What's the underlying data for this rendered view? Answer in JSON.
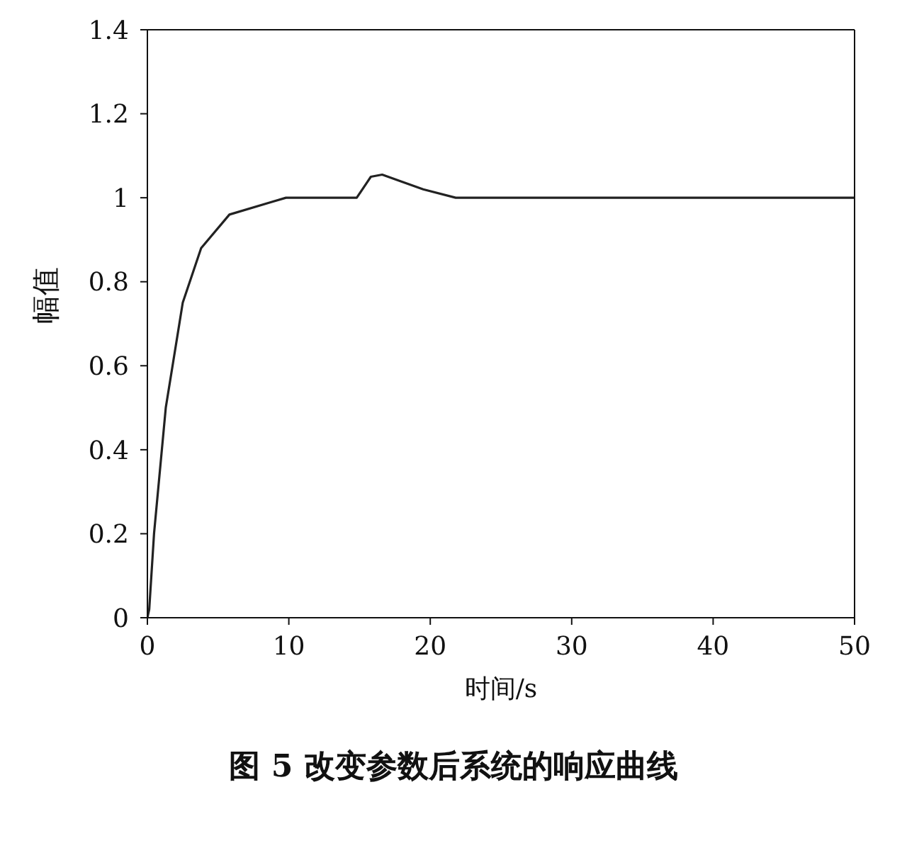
{
  "chart_data": {
    "type": "line",
    "title": "图 5  改变参数后系统的响应曲线",
    "xlabel": "时间/s",
    "ylabel": "幅值",
    "series": [
      {
        "color": "#222222",
        "x": [
          0,
          0.13,
          0.47,
          1.3,
          2.5,
          3.8,
          5.8,
          8.8,
          9.8,
          14.8,
          15.8,
          16.6,
          19.5,
          21.8,
          30,
          40,
          50
        ],
        "values": [
          0,
          0.02,
          0.2,
          0.5,
          0.75,
          0.88,
          0.96,
          0.99,
          1,
          1,
          1.05,
          1.055,
          1.02,
          1,
          1,
          1,
          1
        ]
      }
    ],
    "xlim": [
      0,
      50
    ],
    "xticks": [
      0,
      10,
      20,
      30,
      40,
      50
    ],
    "ylim": [
      0,
      1.4
    ],
    "yticks": [
      0,
      0.2,
      0.4,
      0.6,
      0.8,
      1,
      1.2,
      1.4
    ],
    "grid": false,
    "marker": "none",
    "line_style": "solid"
  }
}
